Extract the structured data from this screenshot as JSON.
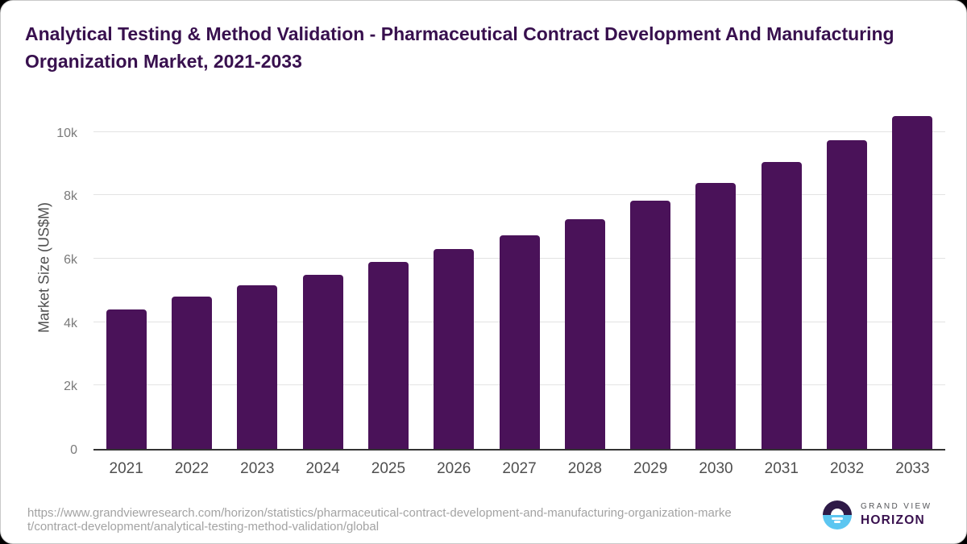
{
  "title": "Analytical Testing & Method Validation - Pharmaceutical Contract Development And Manufacturing Organization Market, 2021-2033",
  "chart_data": {
    "type": "bar",
    "title": "Analytical Testing & Method Validation - Pharmaceutical Contract Development And Manufacturing Organization Market, 2021-2033",
    "categories": [
      "2021",
      "2022",
      "2023",
      "2024",
      "2025",
      "2026",
      "2027",
      "2028",
      "2029",
      "2030",
      "2031",
      "2032",
      "2033"
    ],
    "values": [
      4410,
      4800,
      5170,
      5500,
      5890,
      6300,
      6740,
      7250,
      7820,
      8400,
      9060,
      9740,
      10500
    ],
    "xlabel": "",
    "ylabel": "Market Size (US$M)",
    "ylim": [
      0,
      10620
    ],
    "ytick_values": [
      0,
      2000,
      4000,
      6000,
      8000,
      10000
    ],
    "ytick_labels": [
      "0",
      "2k",
      "4k",
      "6k",
      "8k",
      "10k"
    ],
    "grid": "horizontal",
    "legend": "none",
    "bar_color": "#4a1259"
  },
  "footer": {
    "url_lines": [
      "https://www.grandviewresearch.com/horizon/statistics/pharmaceutical-contract-development-and-manufacturing-organization-marke",
      "t/contract-development/analytical-testing-method-validation/global"
    ]
  },
  "logo": {
    "line1": "GRAND VIEW",
    "line2": "HORIZON"
  },
  "colors": {
    "bar": "#4a1259",
    "title_text": "#38104e",
    "axis_line": "#333333",
    "gridline": "#e3e3e3",
    "tick_text": "#7a7a7a",
    "label_text": "#4f4f4f",
    "source_text": "#a3a3a3",
    "logo_purple": "#2e1a47",
    "logo_blue": "#5cc6f1"
  }
}
